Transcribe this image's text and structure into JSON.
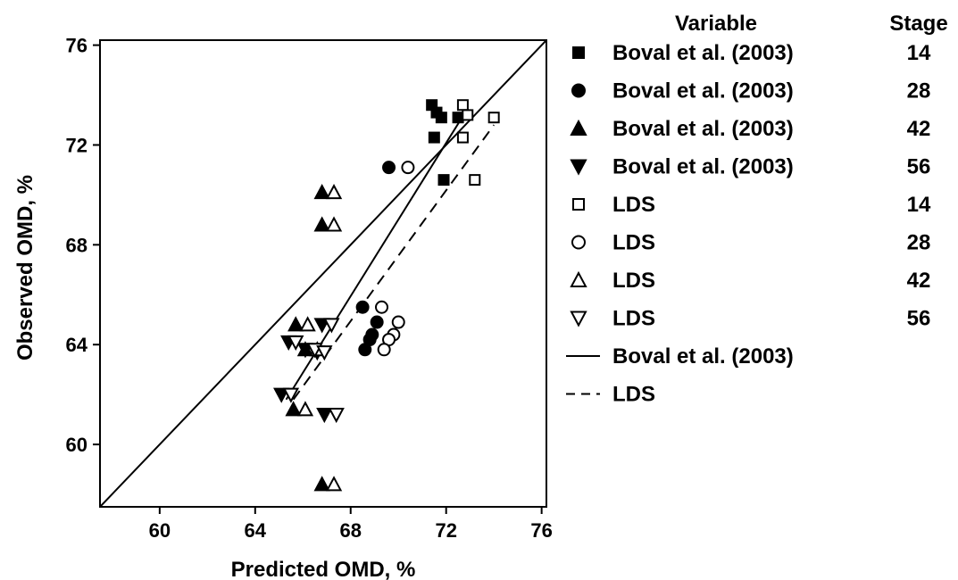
{
  "chart_data": {
    "type": "scatter",
    "title": "",
    "xlabel": "Predicted OMD, %",
    "ylabel": "Observed OMD, %",
    "xlim": [
      57.5,
      76.2
    ],
    "ylim": [
      57.5,
      76.2
    ],
    "xticks": [
      60,
      64,
      68,
      72,
      76
    ],
    "yticks": [
      60,
      64,
      68,
      72,
      76
    ],
    "grid": false,
    "legend_headers": {
      "variable": "Variable",
      "stage": "Stage"
    },
    "series": [
      {
        "name": "Boval et al. (2003)",
        "stage": "14",
        "marker": "filled-square",
        "points": [
          [
            71.4,
            73.6
          ],
          [
            71.6,
            73.3
          ],
          [
            71.8,
            73.1
          ],
          [
            71.5,
            72.3
          ],
          [
            72.5,
            73.1
          ],
          [
            71.9,
            70.6
          ]
        ]
      },
      {
        "name": "Boval et al. (2003)",
        "stage": "28",
        "marker": "filled-circle",
        "points": [
          [
            69.6,
            71.1
          ],
          [
            68.5,
            65.5
          ],
          [
            69.1,
            64.9
          ],
          [
            68.9,
            64.4
          ],
          [
            68.8,
            64.2
          ],
          [
            68.6,
            63.8
          ]
        ]
      },
      {
        "name": "Boval et al. (2003)",
        "stage": "42",
        "marker": "filled-triangle-up",
        "points": [
          [
            66.8,
            70.1
          ],
          [
            66.8,
            68.8
          ],
          [
            65.7,
            64.8
          ],
          [
            66.1,
            63.8
          ],
          [
            65.6,
            61.4
          ],
          [
            66.8,
            58.4
          ]
        ]
      },
      {
        "name": "Boval et al. (2003)",
        "stage": "56",
        "marker": "filled-triangle-down",
        "points": [
          [
            66.8,
            64.8
          ],
          [
            65.4,
            64.1
          ],
          [
            66.1,
            63.8
          ],
          [
            66.6,
            63.7
          ],
          [
            65.1,
            62.0
          ],
          [
            66.9,
            61.2
          ]
        ]
      },
      {
        "name": "LDS",
        "stage": "14",
        "marker": "open-square",
        "points": [
          [
            72.7,
            73.6
          ],
          [
            72.9,
            73.2
          ],
          [
            74.0,
            73.1
          ],
          [
            72.7,
            72.3
          ],
          [
            73.2,
            70.6
          ]
        ]
      },
      {
        "name": "LDS",
        "stage": "28",
        "marker": "open-circle",
        "points": [
          [
            70.4,
            71.1
          ],
          [
            69.3,
            65.5
          ],
          [
            70.0,
            64.9
          ],
          [
            69.8,
            64.4
          ],
          [
            69.6,
            64.2
          ],
          [
            69.4,
            63.8
          ]
        ]
      },
      {
        "name": "LDS",
        "stage": "42",
        "marker": "open-triangle-up",
        "points": [
          [
            67.3,
            70.1
          ],
          [
            67.3,
            68.8
          ],
          [
            66.2,
            64.8
          ],
          [
            66.6,
            63.8
          ],
          [
            66.1,
            61.4
          ],
          [
            67.3,
            58.4
          ]
        ]
      },
      {
        "name": "LDS",
        "stage": "56",
        "marker": "open-triangle-down",
        "points": [
          [
            67.2,
            64.8
          ],
          [
            65.7,
            64.1
          ],
          [
            66.5,
            63.8
          ],
          [
            66.9,
            63.7
          ],
          [
            65.5,
            62.0
          ],
          [
            67.4,
            61.2
          ]
        ]
      }
    ],
    "lines": [
      {
        "name": "Boval et al. (2003)",
        "style": "solid",
        "points": [
          [
            57.5,
            57.5
          ],
          [
            76.2,
            76.2
          ]
        ]
      },
      {
        "name": "Boval et al. (2003)",
        "style": "solid",
        "points": [
          [
            65.3,
            61.8
          ],
          [
            72.6,
            73.0
          ]
        ]
      },
      {
        "name": "LDS",
        "style": "dashed",
        "points": [
          [
            65.6,
            61.8
          ],
          [
            74.0,
            72.8
          ]
        ]
      }
    ],
    "legend_placement": "right"
  }
}
